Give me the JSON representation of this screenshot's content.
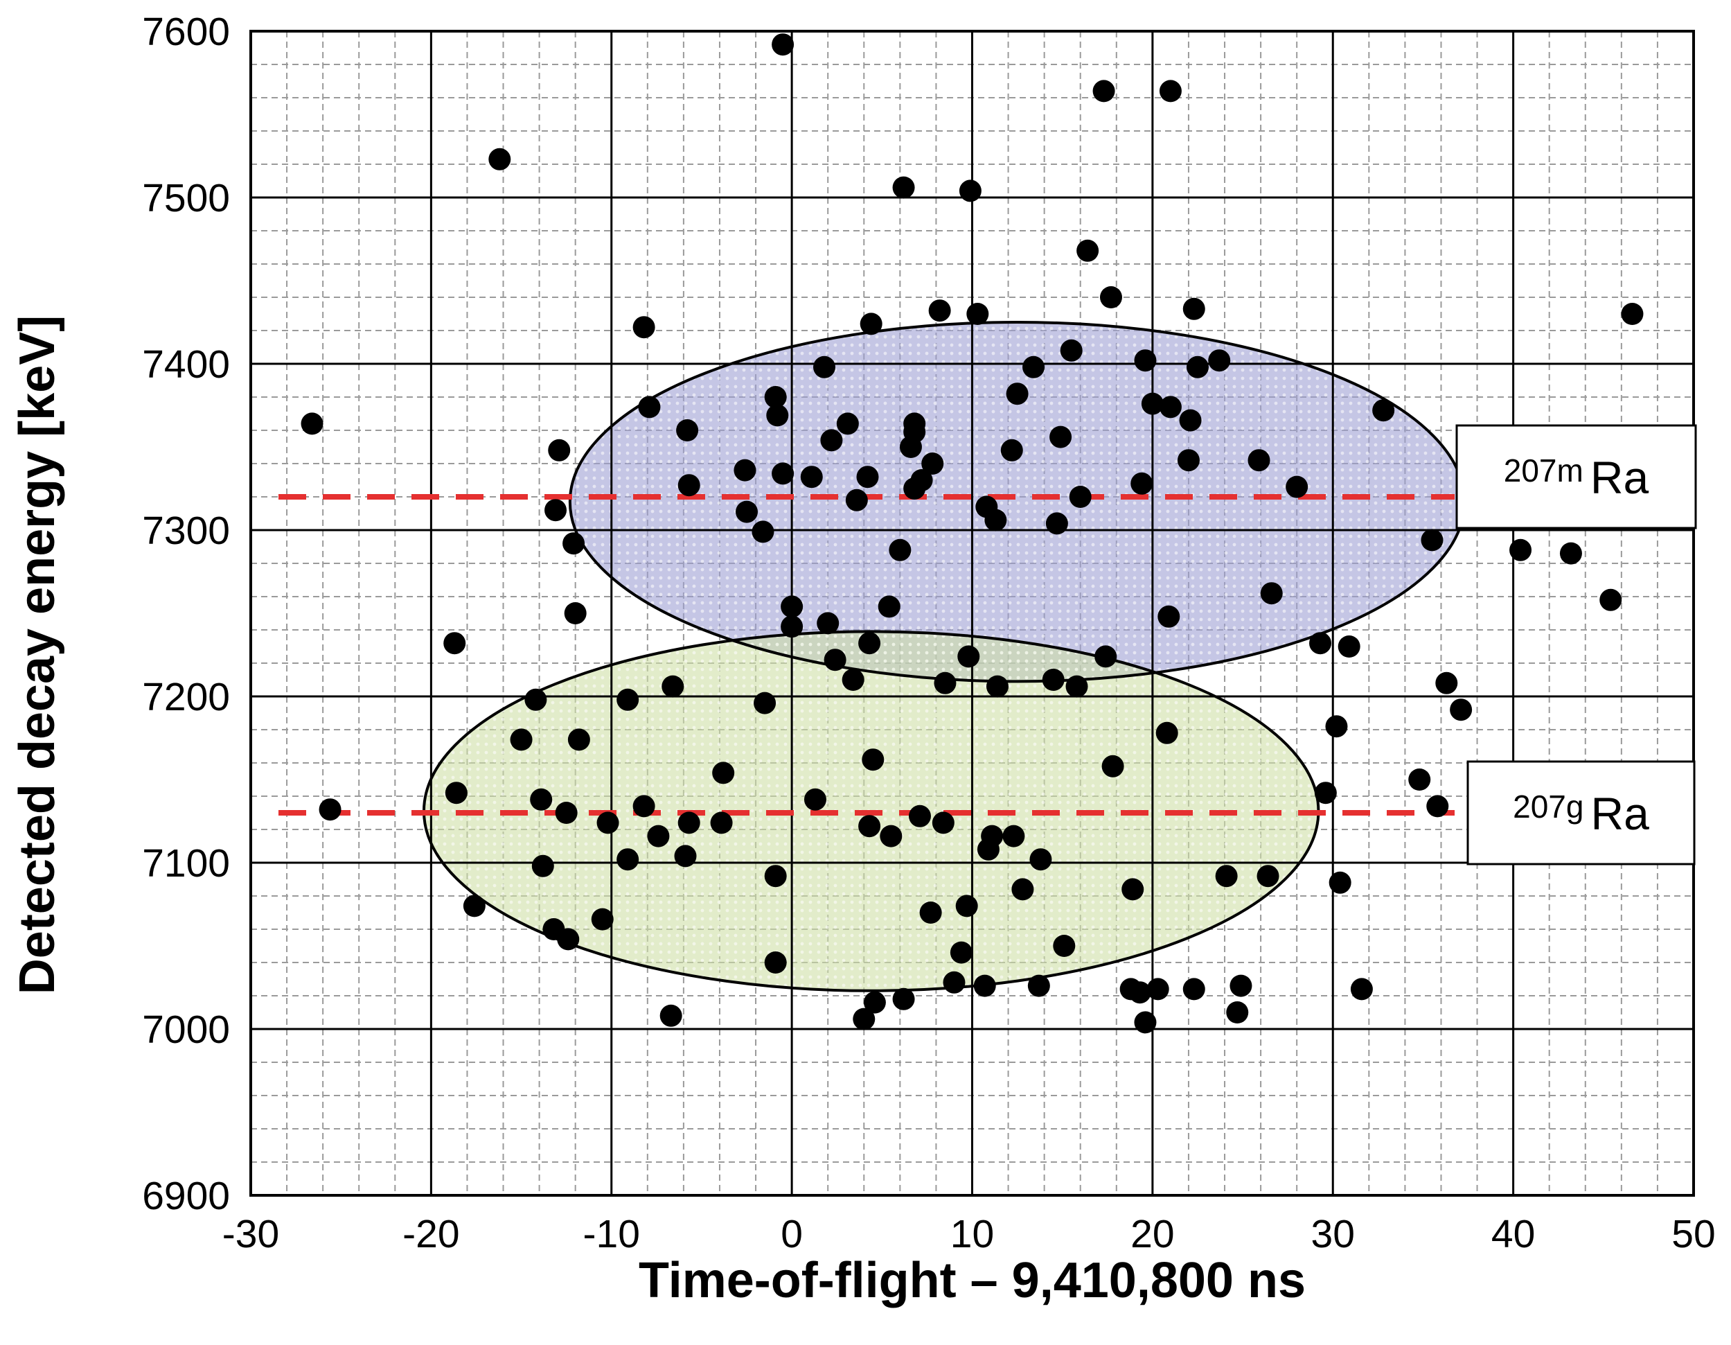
{
  "chart_data": {
    "type": "scatter",
    "title": "",
    "xlabel": "Time-of-flight – 9,410,800 ns",
    "ylabel": "Detected decay energy [keV]",
    "xlim": [
      -30,
      50
    ],
    "ylim": [
      6900,
      7600
    ],
    "x_ticks": [
      -30,
      -20,
      -10,
      0,
      10,
      20,
      30,
      40,
      50
    ],
    "y_ticks": [
      6900,
      7000,
      7100,
      7200,
      7300,
      7400,
      7500,
      7600
    ],
    "x_tick_labels": [
      "-30",
      "-20",
      "-10",
      "0",
      "10",
      "20",
      "30",
      "40",
      "50"
    ],
    "y_tick_labels": [
      "6900",
      "7000",
      "7100",
      "7200",
      "7300",
      "7400",
      "7500",
      "7600"
    ],
    "grid": {
      "major": true,
      "minor": true
    },
    "colors": {
      "points": "#000000",
      "reference_line": "#e53030",
      "metastable_region": "#9fa0d4",
      "ground_region": "#cfe0a6",
      "grid_major": "#000000",
      "grid_minor": "#9a9a9a"
    },
    "reference_lines": [
      {
        "energy": 7320,
        "mass_number": "207m",
        "element": "Ra"
      },
      {
        "energy": 7130,
        "mass_number": "207g",
        "element": "Ra"
      }
    ],
    "regions": [
      {
        "shape": "ellipse",
        "center": [
          12.5,
          7317
        ],
        "semi_axes": [
          24.8,
          108
        ],
        "fill": "#9fa0d4"
      },
      {
        "shape": "ellipse",
        "center": [
          4.4,
          7131
        ],
        "semi_axes": [
          24.8,
          108
        ],
        "fill": "#cfe0a6"
      }
    ],
    "points": [
      [
        -0.5,
        7592
      ],
      [
        17.3,
        7564
      ],
      [
        21,
        7564
      ],
      [
        -16.2,
        7523
      ],
      [
        6.2,
        7506
      ],
      [
        9.9,
        7504
      ],
      [
        16.4,
        7468
      ],
      [
        17.7,
        7440
      ],
      [
        22.3,
        7433
      ],
      [
        8.2,
        7432
      ],
      [
        10.3,
        7430
      ],
      [
        -8.2,
        7422
      ],
      [
        4.4,
        7424
      ],
      [
        46.6,
        7430
      ],
      [
        15.5,
        7408
      ],
      [
        23.7,
        7402
      ],
      [
        19.6,
        7402
      ],
      [
        1.8,
        7398
      ],
      [
        13.4,
        7398
      ],
      [
        22.5,
        7398
      ],
      [
        12.5,
        7382
      ],
      [
        -0.9,
        7380
      ],
      [
        20,
        7376
      ],
      [
        21,
        7374
      ],
      [
        -7.9,
        7374
      ],
      [
        32.8,
        7372
      ],
      [
        -0.8,
        7369
      ],
      [
        -26.6,
        7364
      ],
      [
        22.1,
        7366
      ],
      [
        6.8,
        7364
      ],
      [
        6.8,
        7359
      ],
      [
        3.1,
        7364
      ],
      [
        -5.8,
        7360
      ],
      [
        14.9,
        7356
      ],
      [
        2.2,
        7354
      ],
      [
        6.6,
        7350
      ],
      [
        12.2,
        7348
      ],
      [
        -12.9,
        7348
      ],
      [
        22,
        7342
      ],
      [
        7.8,
        7340
      ],
      [
        25.9,
        7342
      ],
      [
        -2.6,
        7336
      ],
      [
        -0.5,
        7334
      ],
      [
        4.2,
        7332
      ],
      [
        1.1,
        7332
      ],
      [
        7.2,
        7330
      ],
      [
        6.8,
        7325
      ],
      [
        19.4,
        7328
      ],
      [
        -5.7,
        7327
      ],
      [
        28,
        7326
      ],
      [
        3.6,
        7318
      ],
      [
        16,
        7320
      ],
      [
        10.8,
        7314
      ],
      [
        -2.5,
        7311
      ],
      [
        -13.1,
        7312
      ],
      [
        11.3,
        7306
      ],
      [
        14.7,
        7304
      ],
      [
        -1.6,
        7299
      ],
      [
        35.5,
        7294
      ],
      [
        -12.1,
        7292
      ],
      [
        40.4,
        7288
      ],
      [
        43.2,
        7286
      ],
      [
        6,
        7288
      ],
      [
        26.6,
        7262
      ],
      [
        45.4,
        7258
      ],
      [
        0,
        7254
      ],
      [
        5.4,
        7254
      ],
      [
        -12,
        7250
      ],
      [
        20.9,
        7248
      ],
      [
        2,
        7244
      ],
      [
        0,
        7242
      ],
      [
        -18.7,
        7232
      ],
      [
        4.3,
        7232
      ],
      [
        29.3,
        7232
      ],
      [
        30.9,
        7230
      ],
      [
        9.8,
        7224
      ],
      [
        17.4,
        7224
      ],
      [
        2.4,
        7222
      ],
      [
        3.4,
        7210
      ],
      [
        14.5,
        7210
      ],
      [
        8.5,
        7208
      ],
      [
        11.4,
        7206
      ],
      [
        15.8,
        7206
      ],
      [
        36.3,
        7208
      ],
      [
        -6.6,
        7206
      ],
      [
        -14.2,
        7198
      ],
      [
        -9.1,
        7198
      ],
      [
        -1.5,
        7196
      ],
      [
        37.1,
        7192
      ],
      [
        30.2,
        7182
      ],
      [
        20.8,
        7178
      ],
      [
        -15,
        7174
      ],
      [
        -11.8,
        7174
      ],
      [
        17.8,
        7158
      ],
      [
        4.5,
        7162
      ],
      [
        -3.8,
        7154
      ],
      [
        34.8,
        7150
      ],
      [
        -18.6,
        7142
      ],
      [
        -13.9,
        7138
      ],
      [
        1.3,
        7138
      ],
      [
        29.6,
        7142
      ],
      [
        35.8,
        7134
      ],
      [
        -25.6,
        7132
      ],
      [
        -8.2,
        7134
      ],
      [
        -12.5,
        7130
      ],
      [
        7.1,
        7128
      ],
      [
        -5.7,
        7124
      ],
      [
        -3.9,
        7124
      ],
      [
        -10.2,
        7124
      ],
      [
        8.4,
        7124
      ],
      [
        4.3,
        7122
      ],
      [
        -7.4,
        7116
      ],
      [
        5.5,
        7116
      ],
      [
        11.1,
        7116
      ],
      [
        12.3,
        7116
      ],
      [
        10.9,
        7108
      ],
      [
        -5.9,
        7104
      ],
      [
        -9.1,
        7102
      ],
      [
        13.8,
        7102
      ],
      [
        -13.8,
        7098
      ],
      [
        -0.9,
        7092
      ],
      [
        24.1,
        7092
      ],
      [
        26.4,
        7092
      ],
      [
        30.4,
        7088
      ],
      [
        12.8,
        7084
      ],
      [
        18.9,
        7084
      ],
      [
        -17.6,
        7074
      ],
      [
        9.7,
        7074
      ],
      [
        7.7,
        7070
      ],
      [
        -10.5,
        7066
      ],
      [
        -13.2,
        7060
      ],
      [
        -12.4,
        7054
      ],
      [
        15.1,
        7050
      ],
      [
        9.4,
        7046
      ],
      [
        -0.9,
        7040
      ],
      [
        9,
        7028
      ],
      [
        10.7,
        7026
      ],
      [
        13.7,
        7026
      ],
      [
        18.8,
        7024
      ],
      [
        20.3,
        7024
      ],
      [
        22.3,
        7024
      ],
      [
        24.9,
        7026
      ],
      [
        19.3,
        7022
      ],
      [
        31.6,
        7024
      ],
      [
        6.2,
        7018
      ],
      [
        4.6,
        7016
      ],
      [
        24.7,
        7010
      ],
      [
        -6.7,
        7008
      ],
      [
        4,
        7006
      ],
      [
        19.6,
        7004
      ]
    ],
    "annotations": [
      {
        "text": "207m Ra",
        "line_energy": 7320
      },
      {
        "text": "207g Ra",
        "line_energy": 7130
      }
    ]
  },
  "labels": {
    "metastable": {
      "superscript": "207m",
      "element": "Ra"
    },
    "ground": {
      "superscript": "207g",
      "element": "Ra"
    }
  }
}
